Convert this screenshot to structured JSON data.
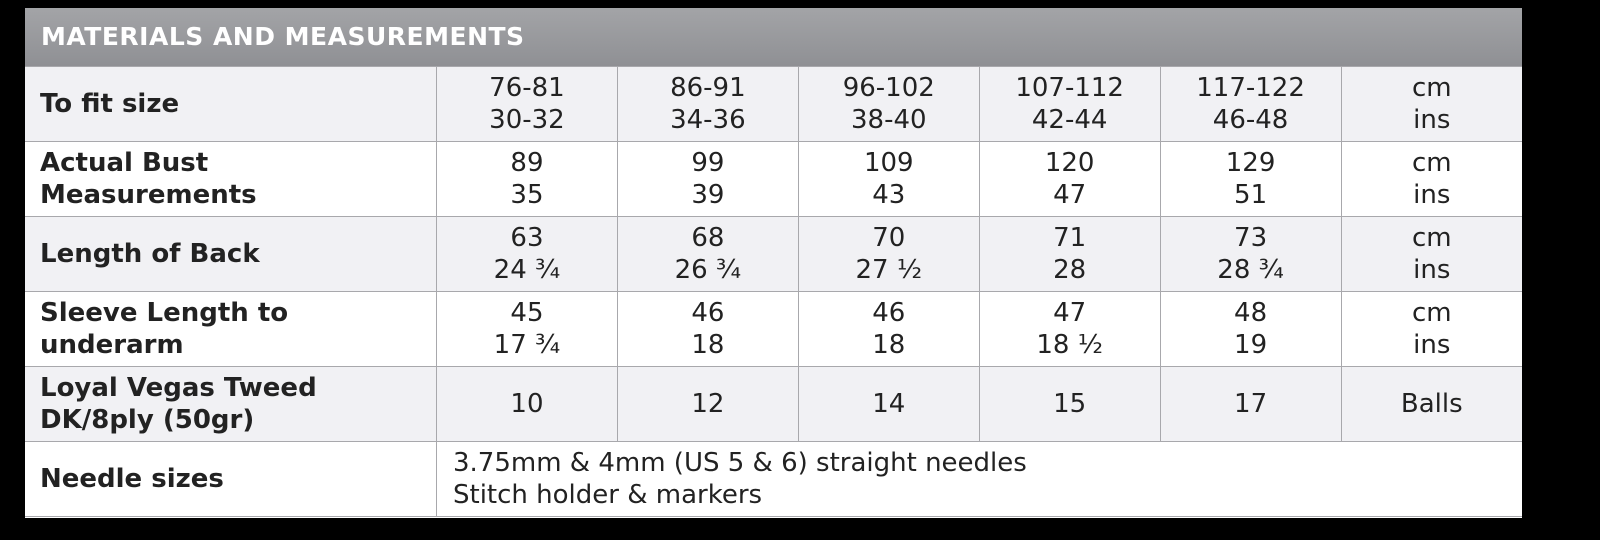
{
  "header": {
    "title": "MATERIALS AND MEASUREMENTS"
  },
  "table": {
    "rows": [
      {
        "label": [
          "To fit size"
        ],
        "cells": [
          [
            "76-81",
            "30-32"
          ],
          [
            "86-91",
            "34-36"
          ],
          [
            "96-102",
            "38-40"
          ],
          [
            "107-112",
            "42-44"
          ],
          [
            "117-122",
            "46-48"
          ],
          [
            "cm",
            "ins"
          ]
        ]
      },
      {
        "label": [
          "Actual Bust",
          "Measurements"
        ],
        "cells": [
          [
            "89",
            "35"
          ],
          [
            "99",
            "39"
          ],
          [
            "109",
            "43"
          ],
          [
            "120",
            "47"
          ],
          [
            "129",
            "51"
          ],
          [
            "cm",
            "ins"
          ]
        ]
      },
      {
        "label": [
          "Length of Back"
        ],
        "cells": [
          [
            "63",
            "24 ¾"
          ],
          [
            "68",
            "26 ¾"
          ],
          [
            "70",
            "27 ½"
          ],
          [
            "71",
            "28"
          ],
          [
            "73",
            "28 ¾"
          ],
          [
            "cm",
            "ins"
          ]
        ]
      },
      {
        "label": [
          "Sleeve Length to",
          "underarm"
        ],
        "cells": [
          [
            "45",
            "17 ¾"
          ],
          [
            "46",
            "18"
          ],
          [
            "46",
            "18"
          ],
          [
            "47",
            "18 ½"
          ],
          [
            "48",
            "19"
          ],
          [
            "cm",
            "ins"
          ]
        ]
      },
      {
        "label": [
          "Loyal Vegas Tweed",
          "DK/8ply (50gr)"
        ],
        "cells": [
          [
            "10"
          ],
          [
            "12"
          ],
          [
            "14"
          ],
          [
            "15"
          ],
          [
            "17"
          ],
          [
            "Balls"
          ]
        ]
      },
      {
        "label": [
          "Needle sizes"
        ],
        "note": [
          "3.75mm & 4mm (US 5 & 6) straight needles",
          "Stitch holder & markers"
        ]
      }
    ]
  }
}
